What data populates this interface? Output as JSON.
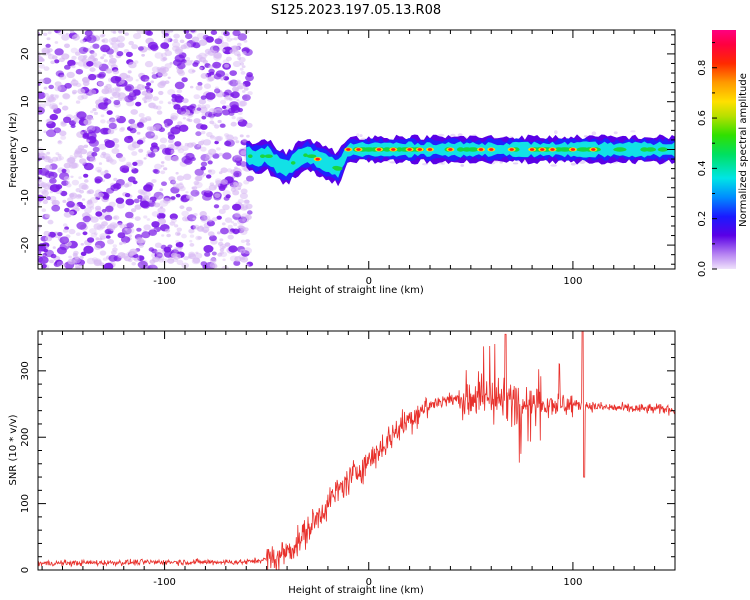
{
  "title": "S125.2023.197.05.13.R08",
  "colors": {
    "snr_line": "#e8302b",
    "dots_light": "#d7b8f3",
    "dots_dark": "#7a18e8",
    "band_blue": "#1e22ff",
    "band_cyan": "#12e1e6",
    "band_green": "#1ad63f",
    "band_red": "#ff1a1a"
  },
  "chart_data": [
    {
      "type": "heatmap",
      "name": "spectrogram",
      "xlabel": "Height of straight line (km)",
      "ylabel": "Frequency (Hz)",
      "xlim": [
        -162,
        150
      ],
      "ylim": [
        -25,
        25
      ],
      "xticks": [
        -100,
        0,
        100
      ],
      "yticks": [
        -20,
        -10,
        0,
        10,
        20
      ],
      "colorbar": {
        "label": "Normalized spectral amplitude",
        "range": [
          0,
          0.95
        ],
        "ticks": [
          "0.0",
          "0.2",
          "0.4",
          "0.6",
          "0.8"
        ],
        "colormap": [
          "#e6d4fa",
          "#a060f0",
          "#5a00e6",
          "#1a1aff",
          "#00a8ff",
          "#00e5e5",
          "#00e080",
          "#30e000",
          "#b8e000",
          "#ffe000",
          "#ffa000",
          "#ff3000",
          "#ff0040",
          "#ff0080"
        ]
      },
      "noise_region_x": [
        -162,
        -60
      ],
      "signal_track": {
        "x": [
          -60,
          -55,
          -50,
          -45,
          -40,
          -35,
          -30,
          -25,
          -20,
          -15,
          -10,
          0,
          20,
          50,
          100,
          150
        ],
        "freq_hz": [
          -1,
          -2,
          -1,
          -3,
          -4,
          -2,
          -1,
          -2,
          -3,
          -4,
          0,
          0,
          0,
          0,
          0,
          0
        ]
      }
    },
    {
      "type": "line",
      "name": "snr",
      "xlabel": "Height of straight line (km)",
      "ylabel": "SNR (10 * v/v)",
      "xlim": [
        -162,
        150
      ],
      "ylim": [
        0,
        360
      ],
      "xticks": [
        -100,
        0,
        100
      ],
      "yticks": [
        0,
        100,
        200,
        300
      ],
      "envelope": {
        "x": [
          -162,
          -100,
          -60,
          -45,
          -35,
          -25,
          -15,
          -5,
          5,
          15,
          25,
          35,
          45,
          55,
          65,
          75,
          85,
          95,
          105,
          115,
          130,
          150
        ],
        "y": [
          10,
          12,
          12,
          18,
          40,
          80,
          120,
          150,
          180,
          215,
          240,
          255,
          258,
          260,
          258,
          255,
          252,
          250,
          248,
          245,
          243,
          242
        ]
      }
    }
  ]
}
